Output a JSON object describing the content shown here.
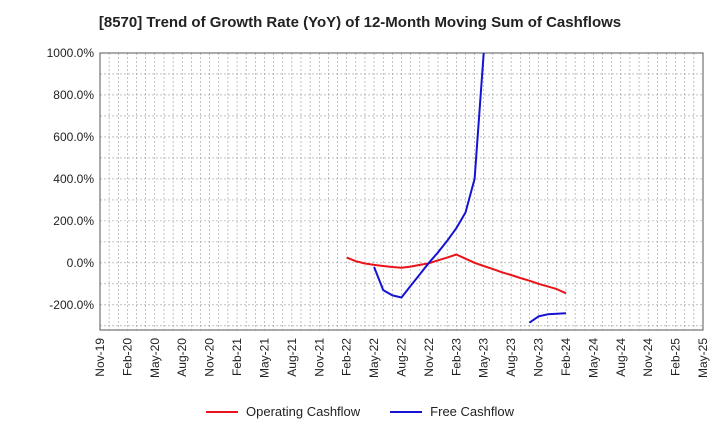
{
  "chart_data": {
    "type": "line",
    "title": "[8570]  Trend of Growth Rate (YoY) of 12-Month Moving Sum of Cashflows",
    "xlabel": "",
    "ylabel": "",
    "x": [
      "Nov-19",
      "Feb-20",
      "May-20",
      "Aug-20",
      "Nov-20",
      "Feb-21",
      "May-21",
      "Aug-21",
      "Nov-21",
      "Feb-22",
      "May-22",
      "Aug-22",
      "Nov-22",
      "Feb-23",
      "May-23",
      "Aug-23",
      "Nov-23",
      "Feb-24",
      "May-24",
      "Aug-24",
      "Nov-24",
      "Feb-25",
      "May-25"
    ],
    "ylim": [
      -320,
      1000
    ],
    "yticks": [
      1000,
      800,
      600,
      400,
      200,
      0,
      -200
    ],
    "ytick_labels": [
      "1000.0%",
      "800.0%",
      "600.0%",
      "400.0%",
      "200.0%",
      "0.0%",
      "-200.0%"
    ],
    "grid": true,
    "legend_position": "bottom",
    "series": [
      {
        "name": "Operating Cashflow",
        "color": "#e8141a",
        "points": [
          {
            "x": "Feb-22",
            "y": 25
          },
          {
            "x": "Mar-22",
            "y": 8
          },
          {
            "x": "Apr-22",
            "y": -3
          },
          {
            "x": "May-22",
            "y": -10
          },
          {
            "x": "Jun-22",
            "y": -15
          },
          {
            "x": "Jul-22",
            "y": -20
          },
          {
            "x": "Aug-22",
            "y": -23
          },
          {
            "x": "Sep-22",
            "y": -18
          },
          {
            "x": "Oct-22",
            "y": -10
          },
          {
            "x": "Nov-22",
            "y": -2
          },
          {
            "x": "Dec-22",
            "y": 12
          },
          {
            "x": "Jan-23",
            "y": 25
          },
          {
            "x": "Feb-23",
            "y": 40
          },
          {
            "x": "Mar-23",
            "y": 20
          },
          {
            "x": "Apr-23",
            "y": 0
          },
          {
            "x": "May-23",
            "y": -15
          },
          {
            "x": "Jun-23",
            "y": -30
          },
          {
            "x": "Jul-23",
            "y": -45
          },
          {
            "x": "Aug-23",
            "y": -58
          },
          {
            "x": "Sep-23",
            "y": -72
          },
          {
            "x": "Oct-23",
            "y": -85
          },
          {
            "x": "Nov-23",
            "y": -100
          },
          {
            "x": "Dec-23",
            "y": -112
          },
          {
            "x": "Jan-24",
            "y": -125
          },
          {
            "x": "Feb-24",
            "y": -145
          }
        ]
      },
      {
        "name": "Free Cashflow",
        "color": "#1414d2",
        "segments": [
          [
            {
              "x": "May-22",
              "y": -20
            },
            {
              "x": "Jun-22",
              "y": -130
            },
            {
              "x": "Jul-22",
              "y": -155
            },
            {
              "x": "Aug-22",
              "y": -165
            },
            {
              "x": "Sep-22",
              "y": -110
            },
            {
              "x": "Oct-22",
              "y": -55
            },
            {
              "x": "Nov-22",
              "y": 0
            },
            {
              "x": "Dec-22",
              "y": 50
            },
            {
              "x": "Jan-23",
              "y": 105
            },
            {
              "x": "Feb-23",
              "y": 165
            },
            {
              "x": "Mar-23",
              "y": 240
            },
            {
              "x": "Apr-23",
              "y": 400
            },
            {
              "x": "May-23",
              "y": 1000
            }
          ],
          [
            {
              "x": "Oct-23",
              "y": -285
            },
            {
              "x": "Nov-23",
              "y": -255
            },
            {
              "x": "Dec-23",
              "y": -245
            },
            {
              "x": "Jan-24",
              "y": -243
            },
            {
              "x": "Feb-24",
              "y": -240
            }
          ]
        ]
      }
    ]
  }
}
